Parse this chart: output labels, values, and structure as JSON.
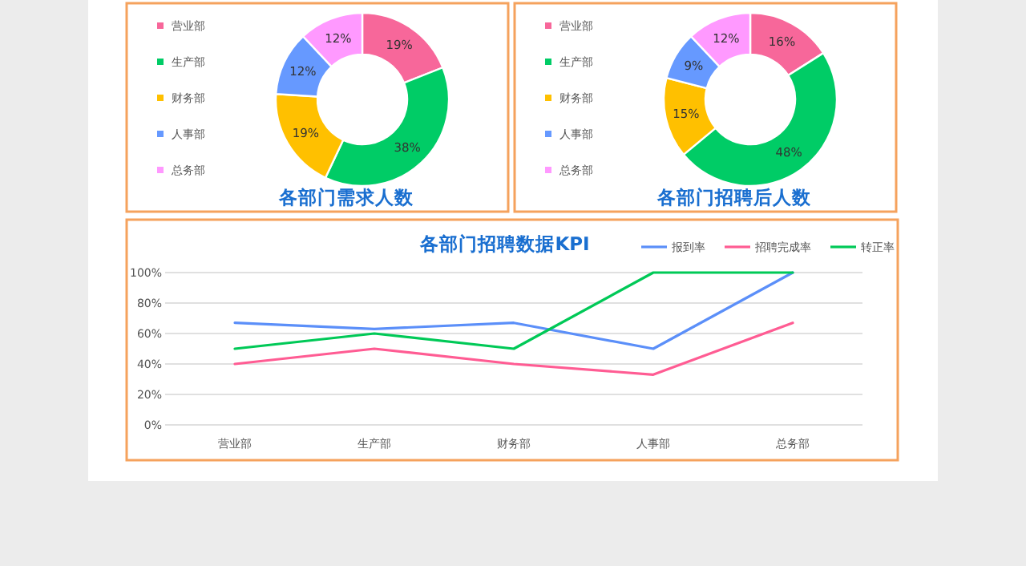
{
  "chart_data": [
    {
      "type": "donut",
      "title": "各部门需求人数",
      "categories": [
        "营业部",
        "生产部",
        "财务部",
        "人事部",
        "总务部"
      ],
      "values": [
        19,
        38,
        19,
        12,
        12
      ],
      "value_labels": [
        "19%",
        "38%",
        "19%",
        "12%",
        "12%"
      ],
      "colors": [
        "#f7679a",
        "#00cc66",
        "#ffc000",
        "#6699ff",
        "#ff99ff"
      ],
      "legend": "left"
    },
    {
      "type": "donut",
      "title": "各部门招聘后人数",
      "categories": [
        "营业部",
        "生产部",
        "财务部",
        "人事部",
        "总务部"
      ],
      "values": [
        16,
        48,
        15,
        9,
        12
      ],
      "value_labels": [
        "16%",
        "48%",
        "15%",
        "9%",
        "12%"
      ],
      "colors": [
        "#f7679a",
        "#00cc66",
        "#ffc000",
        "#6699ff",
        "#ff99ff"
      ],
      "legend": "left"
    },
    {
      "type": "line",
      "title": "各部门招聘数据KPI",
      "categories": [
        "营业部",
        "生产部",
        "财务部",
        "人事部",
        "总务部"
      ],
      "series": [
        {
          "name": "报到率",
          "color": "#5b8ff9",
          "values": [
            67,
            63,
            67,
            50,
            100
          ]
        },
        {
          "name": "招聘完成率",
          "color": "#ff5c93",
          "values": [
            40,
            50,
            40,
            33,
            67
          ]
        },
        {
          "name": "转正率",
          "color": "#00c957",
          "values": [
            50,
            60,
            50,
            100,
            100
          ]
        }
      ],
      "ylim": [
        0,
        100
      ],
      "yticks": [
        {
          "value": 0,
          "label": "0%"
        },
        {
          "value": 20,
          "label": "20%"
        },
        {
          "value": 40,
          "label": "40%"
        },
        {
          "value": 60,
          "label": "60%"
        },
        {
          "value": 80,
          "label": "80%"
        },
        {
          "value": 100,
          "label": "100%"
        }
      ],
      "grid": "y",
      "legend": "top right"
    }
  ]
}
